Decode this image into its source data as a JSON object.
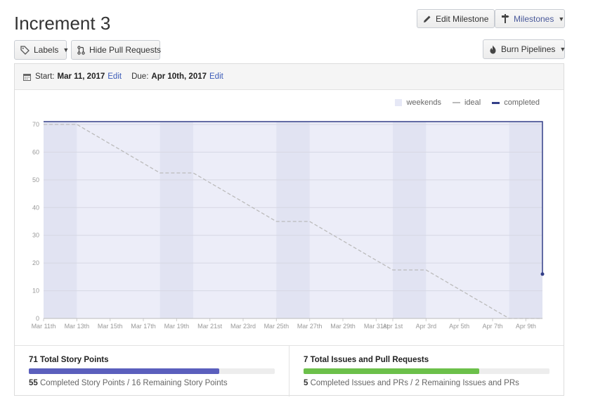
{
  "page": {
    "title": "Increment 3"
  },
  "toolbar": {
    "labels_label": "Labels",
    "hide_prs_label": "Hide Pull Requests",
    "edit_milestone_label": "Edit Milestone",
    "milestones_label": "Milestones",
    "burn_pipelines_label": "Burn Pipelines"
  },
  "dates": {
    "start_prefix": "Start:",
    "start": "Mar 11, 2017",
    "start_edit": "Edit",
    "due_prefix": "Due:",
    "due": "Apr 10th, 2017",
    "due_edit": "Edit"
  },
  "legend": {
    "weekends": "weekends",
    "ideal": "ideal",
    "completed": "completed"
  },
  "colors": {
    "completed": "#333f88",
    "ideal": "#bbbbbb",
    "weekend": "#e1e3f2",
    "plot_bg": "#ecedf8",
    "issues": "#6cc04a",
    "points": "#5b5fbd"
  },
  "chart_data": {
    "type": "line",
    "ylim": [
      0,
      70
    ],
    "yticks": [
      0,
      10,
      20,
      30,
      40,
      50,
      60,
      70
    ],
    "xlim_days": [
      "Mar 11th",
      "Apr 10th"
    ],
    "xtick_labels": [
      "Mar 11th",
      "Mar 13th",
      "Mar 15th",
      "Mar 17th",
      "Mar 19th",
      "Mar 21st",
      "Mar 23rd",
      "Mar 25th",
      "Mar 27th",
      "Mar 29th",
      "Mar 31st",
      "Apr 1st",
      "Apr 3rd",
      "Apr 5th",
      "Apr 7th",
      "Apr 9th"
    ],
    "xtick_days": [
      0,
      2,
      4,
      6,
      8,
      10,
      12,
      14,
      16,
      18,
      20,
      21,
      23,
      25,
      27,
      29
    ],
    "weekends": [
      [
        0,
        2
      ],
      [
        7,
        9
      ],
      [
        14,
        16
      ],
      [
        21,
        23
      ],
      [
        28,
        30
      ]
    ],
    "series": [
      {
        "name": "ideal",
        "x": [
          0,
          2,
          7,
          9,
          14,
          16,
          21,
          23,
          28,
          30
        ],
        "y": [
          70,
          70,
          52.5,
          52.5,
          35,
          35,
          17.5,
          17.5,
          0,
          0
        ]
      },
      {
        "name": "completed",
        "x": [
          0,
          30,
          30
        ],
        "y": [
          71,
          71,
          16
        ]
      }
    ]
  },
  "stats": {
    "points": {
      "total_label": "71 Total Story Points",
      "completed": "55",
      "completed_text": "Completed Story Points",
      "sep": "/",
      "remaining_text": "16 Remaining Story Points",
      "fraction": 0.775
    },
    "issues": {
      "total_label": "7 Total Issues and Pull Requests",
      "completed": "5",
      "completed_text": "Completed Issues and PRs",
      "sep": "/",
      "remaining_text": "2 Remaining Issues and PRs",
      "fraction": 0.714
    }
  }
}
